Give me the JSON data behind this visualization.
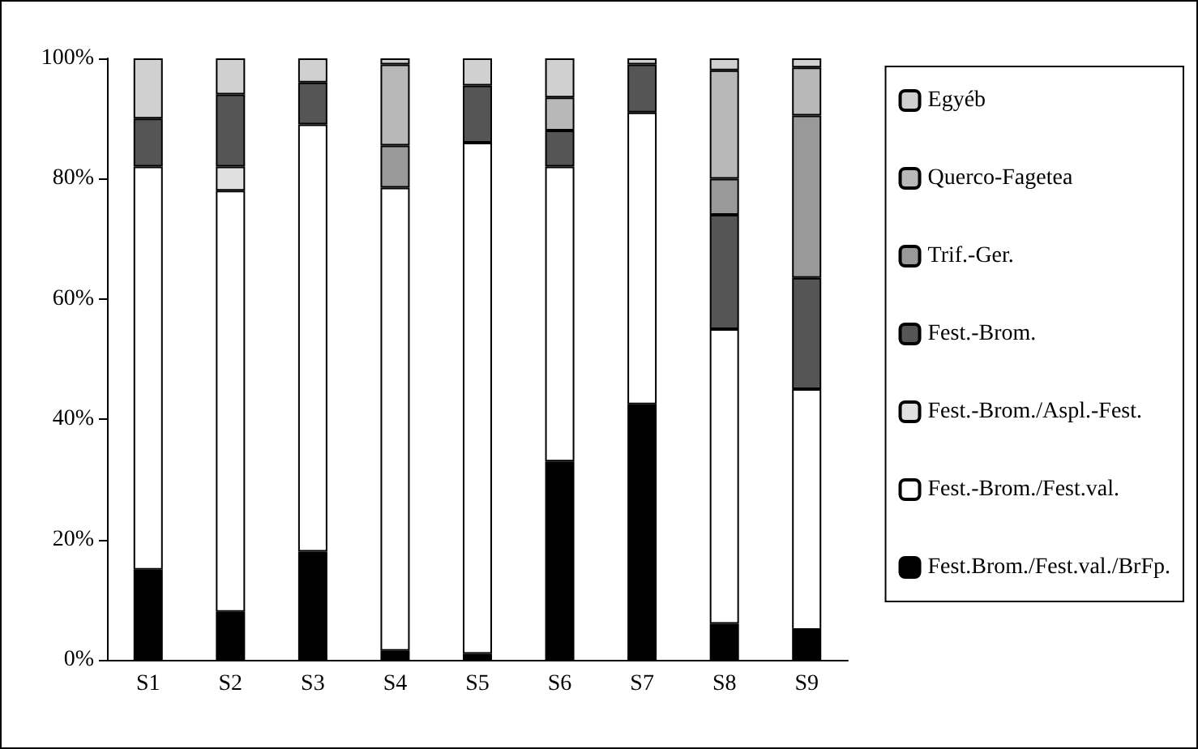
{
  "chart_data": {
    "type": "bar",
    "stacked": true,
    "categories": [
      "S1",
      "S2",
      "S3",
      "S4",
      "S5",
      "S6",
      "S7",
      "S8",
      "S9"
    ],
    "series": [
      {
        "name": "Fest.Brom./Fest.val./BrFp.",
        "color": "#000000",
        "values": [
          15,
          8,
          18,
          1.5,
          1,
          33,
          42.5,
          6,
          5
        ]
      },
      {
        "name": "Fest.-Brom./Fest.val.",
        "color": "#ffffff",
        "values": [
          67,
          70,
          71,
          77,
          85,
          49,
          48.5,
          49,
          40
        ]
      },
      {
        "name": "Fest.-Brom./Aspl.-Fest.",
        "color": "#e0e0e0",
        "values": [
          0,
          4,
          0,
          0,
          0,
          0,
          0,
          0,
          0
        ]
      },
      {
        "name": "Fest.-Brom.",
        "color": "#555555",
        "values": [
          8,
          12,
          7,
          0,
          9.5,
          6,
          8,
          19,
          18.5
        ]
      },
      {
        "name": "Trif.-Ger.",
        "color": "#999999",
        "values": [
          0,
          0,
          0,
          7,
          0,
          0,
          0,
          6,
          27
        ]
      },
      {
        "name": "Querco-Fagetea",
        "color": "#b8b8b8",
        "values": [
          0,
          0,
          0,
          13.5,
          0,
          5.5,
          0,
          18,
          8
        ]
      },
      {
        "name": "Egyéb",
        "color": "#d0d0d0",
        "values": [
          10,
          6,
          4,
          1,
          4.5,
          6.5,
          1,
          2,
          1.5
        ]
      }
    ],
    "ylim": [
      0,
      100
    ],
    "yticks": [
      {
        "value": 0,
        "label": "0%"
      },
      {
        "value": 20,
        "label": "20%"
      },
      {
        "value": 40,
        "label": "40%"
      },
      {
        "value": 60,
        "label": "60%"
      },
      {
        "value": 80,
        "label": "80%"
      },
      {
        "value": 100,
        "label": "100%"
      }
    ],
    "grid": false,
    "legend": "right"
  }
}
